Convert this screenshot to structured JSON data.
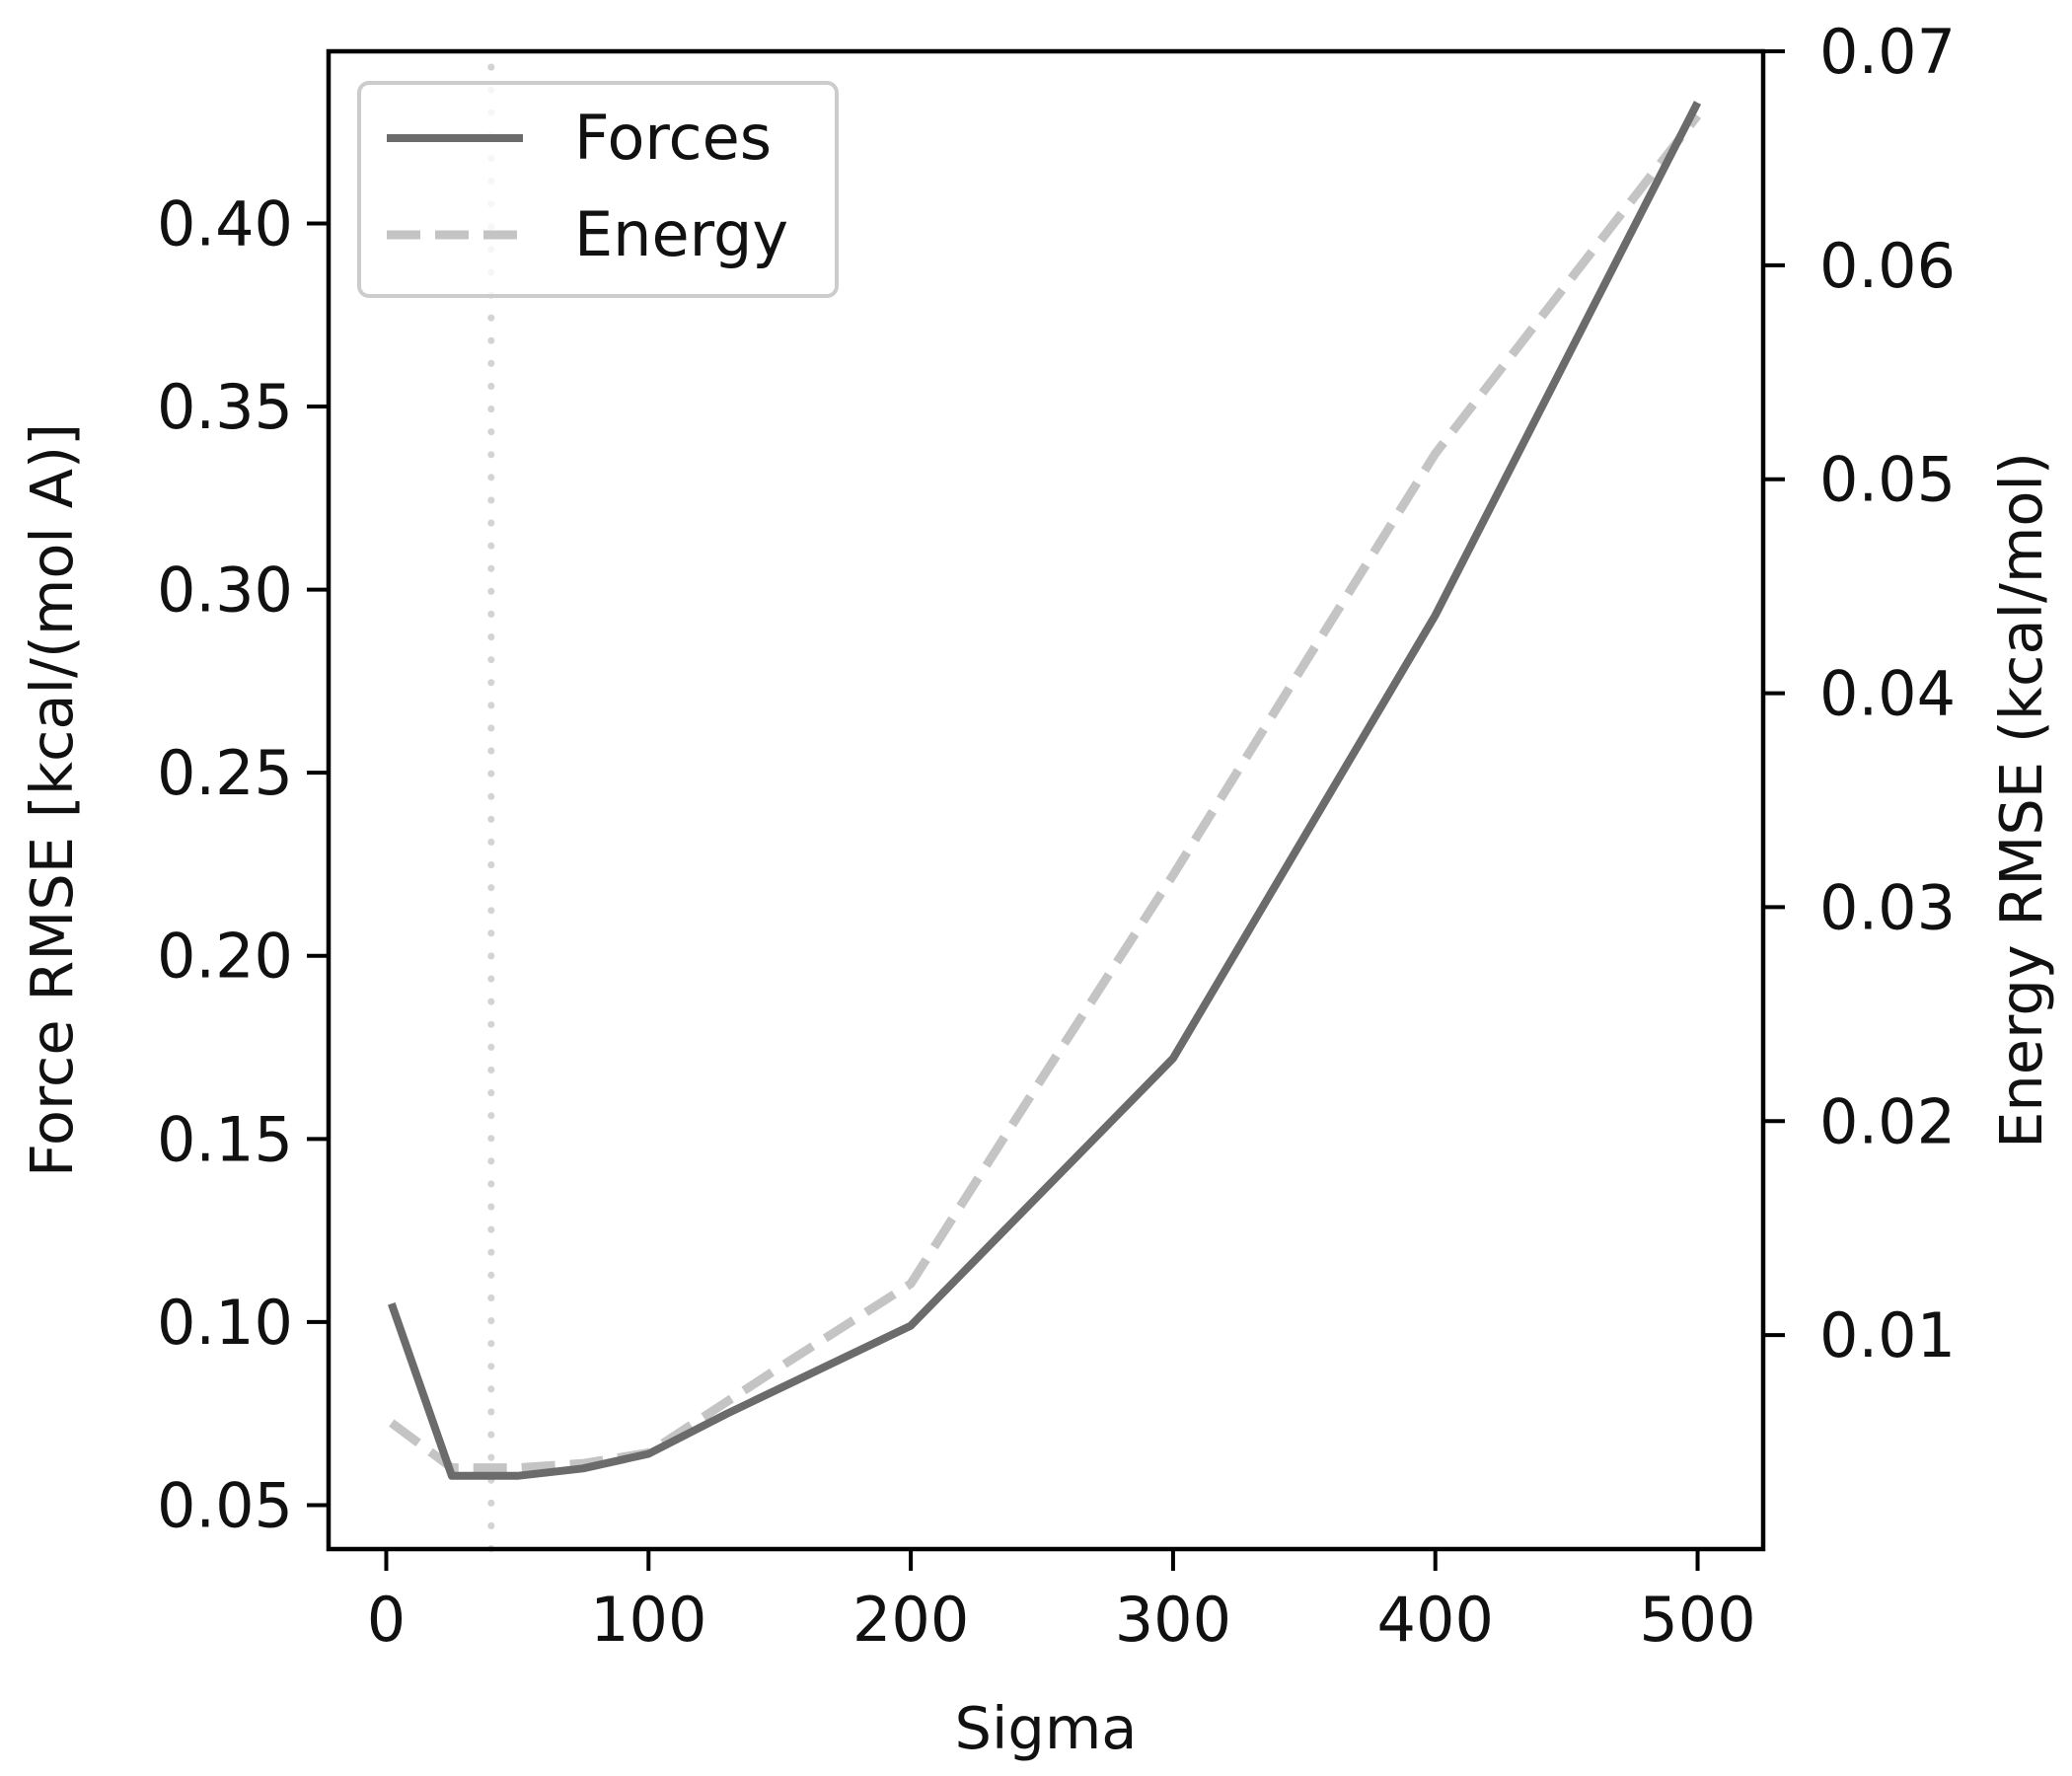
{
  "chart_data": {
    "type": "line",
    "title": "",
    "xlabel": "Sigma",
    "ylabel": "Force RMSE [kcal/(mol A)]",
    "y2label": "Energy RMSE (kcal/mol)",
    "xlim": [
      -22,
      525
    ],
    "ylim": [
      0.038,
      0.447
    ],
    "y2lim": [
      0.0,
      0.07
    ],
    "xticks": [
      "0",
      "100",
      "200",
      "300",
      "400",
      "500"
    ],
    "yticks": [
      "0.05",
      "0.10",
      "0.15",
      "0.20",
      "0.25",
      "0.30",
      "0.35",
      "0.40"
    ],
    "y2ticks": [
      "0.01",
      "0.02",
      "0.03",
      "0.04",
      "0.05",
      "0.06",
      "0.07"
    ],
    "grid": false,
    "legend_position": "top-left",
    "vline_x": 40,
    "series": [
      {
        "name": "Forces",
        "axis": "left",
        "style": "solid",
        "color": "#6b6b6b",
        "x": [
          2,
          25,
          50,
          75,
          100,
          130,
          200,
          300,
          400,
          500
        ],
        "y": [
          0.105,
          0.058,
          0.058,
          0.06,
          0.064,
          0.075,
          0.099,
          0.172,
          0.293,
          0.433
        ]
      },
      {
        "name": "Energy",
        "axis": "right",
        "style": "dashed",
        "color": "#c4c4c4",
        "x": [
          2,
          25,
          50,
          75,
          100,
          150,
          200,
          250,
          300,
          400,
          500
        ],
        "y": [
          0.0059,
          0.0038,
          0.0038,
          0.004,
          0.0045,
          0.0085,
          0.0124,
          0.022,
          0.0315,
          0.0512,
          0.067
        ]
      }
    ]
  }
}
